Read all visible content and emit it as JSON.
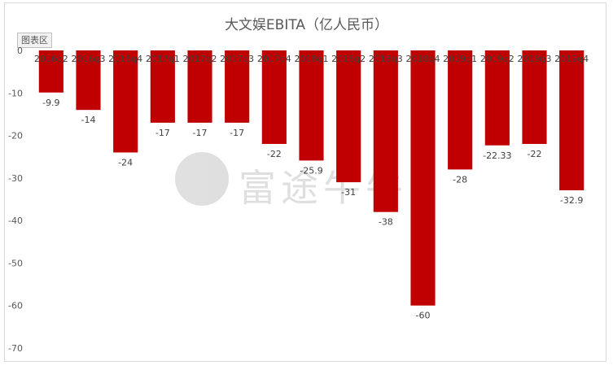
{
  "legend_button_label": "图表区",
  "watermark_text": "富途牛牛",
  "chart_data": {
    "type": "bar",
    "title": "大文娱EBITA（亿人民币）",
    "xlabel": "",
    "ylabel": "",
    "categories": [
      "2016q2",
      "2016q3",
      "2016q4",
      "2017q1",
      "2017q2",
      "2017q3",
      "2017q4",
      "2018q1",
      "2018q2",
      "2018q3",
      "2018q4",
      "2019q1",
      "2019q2",
      "2019q3",
      "2019q4"
    ],
    "values": [
      -9.9,
      -14,
      -24,
      -17,
      -17,
      -17,
      -22,
      -25.9,
      -31,
      -38,
      -60,
      -28,
      -22.33,
      -22,
      -32.9
    ],
    "data_labels": [
      "-9.9",
      "-14",
      "-24",
      "-17",
      "-17",
      "-17",
      "-22",
      "-25.9",
      "-31",
      "-38",
      "-60",
      "-28",
      "-22.33",
      "-22",
      "-32.9"
    ],
    "ylim": [
      -70,
      0
    ],
    "yticks": [
      0,
      -10,
      -20,
      -30,
      -40,
      -50,
      -60,
      -70
    ],
    "grid": false,
    "legend": "none",
    "bar_color": "#c00000"
  }
}
